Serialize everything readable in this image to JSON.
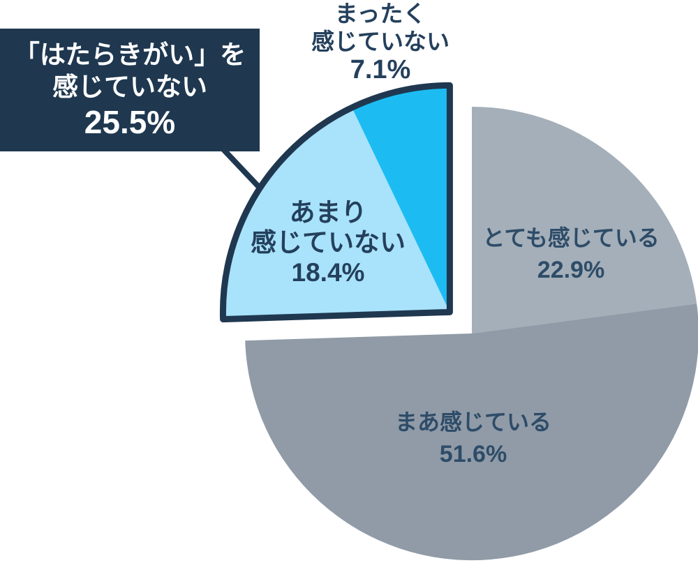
{
  "chart_data": {
    "type": "pie",
    "title": "",
    "legend": "none",
    "start_angle_deg": 90,
    "direction": "clockwise",
    "slices": [
      {
        "id": "very",
        "label": "とても感じている",
        "value": 22.9,
        "color": "#A4AFB9",
        "group": "feeling"
      },
      {
        "id": "somewhat",
        "label": "まあ感じている",
        "value": 51.6,
        "color": "#909BA7",
        "group": "feeling"
      },
      {
        "id": "not-really",
        "label": "あまり感じていない",
        "value": 18.4,
        "color": "#A9E2FB",
        "group": "not-feeling"
      },
      {
        "id": "not-at-all",
        "label": "まったく感じていない",
        "value": 7.1,
        "color": "#1CBCF2",
        "group": "not-feeling"
      }
    ],
    "explode": {
      "group": "not-feeling",
      "outline": true
    },
    "callout": {
      "label": "「はたらきがい」を感じていない",
      "value": 25.5
    }
  },
  "labels": {
    "notAtAll": {
      "lines": [
        "まったく",
        "感じていない",
        "7.1%"
      ]
    },
    "notReally": {
      "lines": [
        "あまり",
        "感じていない",
        "18.4%"
      ]
    },
    "very": {
      "lines": [
        "とても感じている",
        "22.9%"
      ]
    },
    "somewhat": {
      "lines": [
        "まあ感じている",
        "51.6%"
      ]
    },
    "callout": {
      "lines": [
        "「はたらきがい」を",
        "感じていない",
        "25.5%"
      ]
    }
  },
  "colors": {
    "background": "#FFFFFF",
    "navy": "#1F3850",
    "label_text": "#24405C",
    "label_text_on_gray": "#2E4C68",
    "callout_text": "#FFFFFF",
    "cyan": "#1CBCF2",
    "light_blue": "#A9E2FB",
    "gray_light": "#A4AFB9",
    "gray_blue": "#909BA7"
  }
}
